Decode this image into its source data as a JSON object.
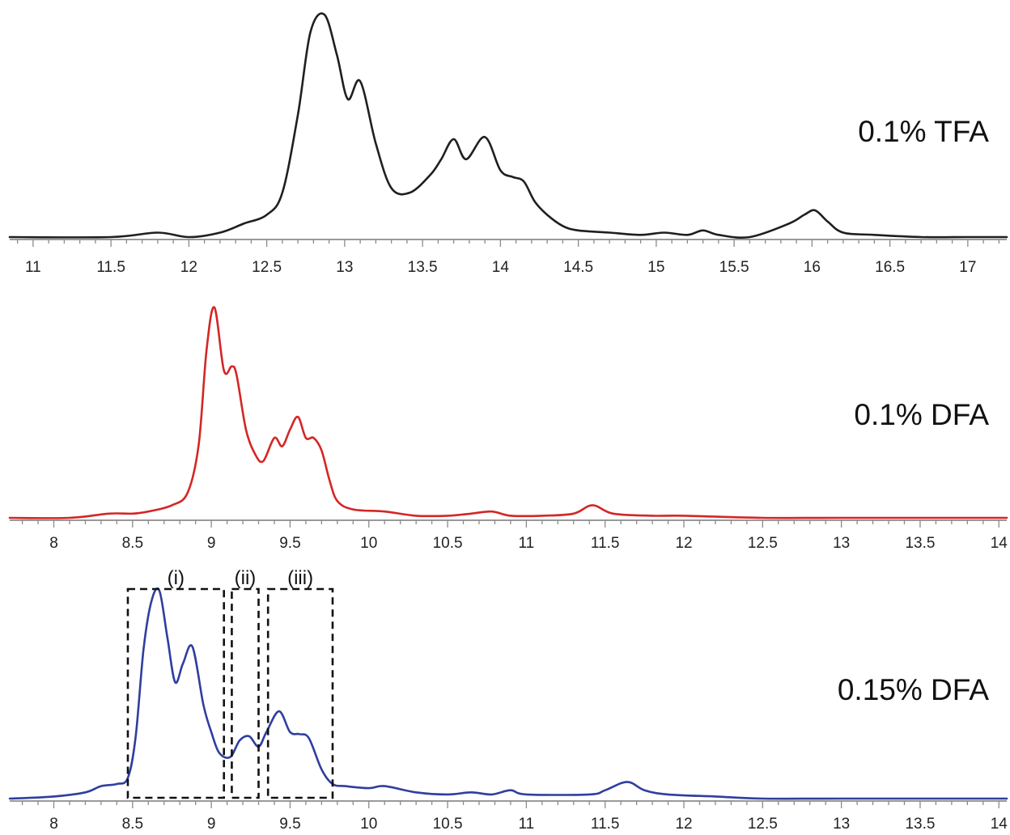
{
  "chart_data": [
    {
      "type": "line",
      "label": "0.1% TFA",
      "color": "#1f1f1f",
      "xlim": [
        10.85,
        17.25
      ],
      "x_ticks": [
        "11",
        "11.5",
        "12",
        "12.5",
        "13",
        "13.5",
        "14",
        "14.5",
        "15",
        "15.5",
        "16",
        "16.5",
        "17"
      ],
      "grid": false,
      "series": [
        {
          "x": [
            10.85,
            11.5,
            11.8,
            12.0,
            12.2,
            12.35,
            12.5,
            12.6,
            12.7,
            12.78,
            12.87,
            12.95,
            13.02,
            13.1,
            13.2,
            13.3,
            13.42,
            13.55,
            13.62,
            13.7,
            13.78,
            13.9,
            14.0,
            14.08,
            14.15,
            14.22,
            14.3,
            14.4,
            14.5,
            14.7,
            14.9,
            15.05,
            15.2,
            15.3,
            15.4,
            15.6,
            15.85,
            15.95,
            16.02,
            16.1,
            16.2,
            16.4,
            16.7,
            17.0,
            17.25
          ],
          "y": [
            0.0,
            0.0,
            0.02,
            0.0,
            0.02,
            0.06,
            0.1,
            0.2,
            0.55,
            0.92,
            1.0,
            0.82,
            0.62,
            0.7,
            0.42,
            0.22,
            0.2,
            0.28,
            0.35,
            0.44,
            0.35,
            0.45,
            0.3,
            0.27,
            0.25,
            0.16,
            0.1,
            0.05,
            0.03,
            0.02,
            0.01,
            0.02,
            0.01,
            0.03,
            0.01,
            0.0,
            0.06,
            0.1,
            0.12,
            0.07,
            0.02,
            0.01,
            0.0,
            0.0,
            0.0
          ]
        }
      ]
    },
    {
      "type": "line",
      "label": "0.1% DFA",
      "color": "#d42626",
      "xlim": [
        7.72,
        14.05
      ],
      "x_ticks": [
        "8",
        "8.5",
        "9",
        "9.5",
        "10",
        "10.5",
        "11",
        "11.5",
        "12",
        "12.5",
        "13",
        "13.5",
        "14"
      ],
      "grid": false,
      "series": [
        {
          "x": [
            7.72,
            8.1,
            8.35,
            8.5,
            8.6,
            8.75,
            8.85,
            8.92,
            8.97,
            9.02,
            9.08,
            9.13,
            9.16,
            9.22,
            9.28,
            9.33,
            9.4,
            9.45,
            9.5,
            9.55,
            9.6,
            9.65,
            9.7,
            9.75,
            9.8,
            9.9,
            10.1,
            10.3,
            10.5,
            10.65,
            10.78,
            10.9,
            11.1,
            11.3,
            11.42,
            11.55,
            11.8,
            12.0,
            12.5,
            13.0,
            14.05
          ],
          "y": [
            0.0,
            0.0,
            0.02,
            0.02,
            0.03,
            0.06,
            0.12,
            0.35,
            0.8,
            1.0,
            0.7,
            0.72,
            0.68,
            0.42,
            0.3,
            0.27,
            0.38,
            0.34,
            0.42,
            0.48,
            0.38,
            0.38,
            0.32,
            0.18,
            0.08,
            0.04,
            0.03,
            0.01,
            0.01,
            0.02,
            0.03,
            0.01,
            0.01,
            0.02,
            0.06,
            0.02,
            0.01,
            0.01,
            0.0,
            0.0,
            0.0
          ]
        }
      ]
    },
    {
      "type": "line",
      "label": "0.15% DFA",
      "color": "#2f3e9e",
      "xlim": [
        7.72,
        14.05
      ],
      "x_ticks": [
        "8",
        "8.5",
        "9",
        "9.5",
        "10",
        "10.5",
        "11",
        "11.5",
        "12",
        "12.5",
        "13",
        "13.5",
        "14"
      ],
      "grid": false,
      "series": [
        {
          "x": [
            7.72,
            8.0,
            8.2,
            8.3,
            8.4,
            8.47,
            8.52,
            8.57,
            8.62,
            8.67,
            8.72,
            8.77,
            8.82,
            8.88,
            8.95,
            9.0,
            9.05,
            9.12,
            9.18,
            9.24,
            9.3,
            9.35,
            9.43,
            9.5,
            9.56,
            9.62,
            9.7,
            9.77,
            9.85,
            10.0,
            10.1,
            10.3,
            10.5,
            10.65,
            10.78,
            10.9,
            11.0,
            11.4,
            11.5,
            11.64,
            11.75,
            11.9,
            12.2,
            12.5,
            13.0,
            14.05
          ],
          "y": [
            0.0,
            0.01,
            0.03,
            0.06,
            0.07,
            0.1,
            0.3,
            0.72,
            0.95,
            1.0,
            0.78,
            0.56,
            0.65,
            0.73,
            0.45,
            0.32,
            0.22,
            0.2,
            0.28,
            0.3,
            0.25,
            0.32,
            0.42,
            0.32,
            0.31,
            0.29,
            0.14,
            0.07,
            0.06,
            0.05,
            0.06,
            0.03,
            0.02,
            0.03,
            0.02,
            0.04,
            0.02,
            0.02,
            0.04,
            0.08,
            0.04,
            0.02,
            0.01,
            0.0,
            0.0,
            0.0
          ]
        }
      ],
      "annotations": [
        {
          "label": "(i)",
          "x_range": [
            8.47,
            9.08
          ]
        },
        {
          "label": "(ii)",
          "x_range": [
            9.13,
            9.3
          ]
        },
        {
          "label": "(iii)",
          "x_range": [
            9.36,
            9.77
          ]
        }
      ]
    }
  ]
}
